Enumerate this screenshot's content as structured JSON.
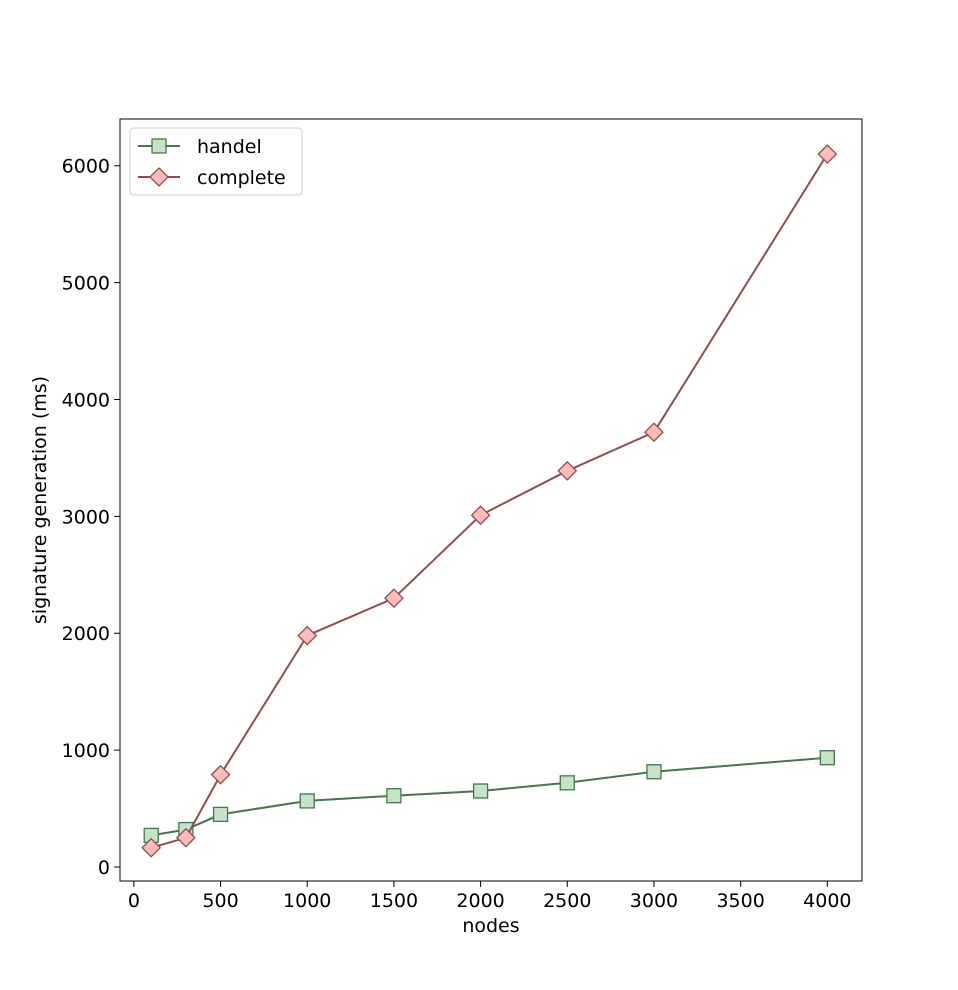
{
  "chart_data": {
    "type": "line",
    "title": "",
    "xlabel": "nodes",
    "ylabel": "signature generation (ms)",
    "xlim": [
      -80,
      4200
    ],
    "ylim": [
      -120,
      6400
    ],
    "xticks": [
      0,
      500,
      1000,
      1500,
      2000,
      2500,
      3000,
      3500,
      4000
    ],
    "yticks": [
      0,
      1000,
      2000,
      3000,
      4000,
      5000,
      6000
    ],
    "grid": false,
    "legend_position": "upper-left",
    "series": [
      {
        "name": "handel",
        "marker": "square",
        "line_color": "#4a7350",
        "marker_fill": "#c5e3c5",
        "marker_edge": "#4a7350",
        "x": [
          100,
          300,
          500,
          1000,
          1500,
          2000,
          2500,
          3000,
          4000
        ],
        "y": [
          270,
          320,
          450,
          565,
          610,
          650,
          720,
          815,
          935
        ]
      },
      {
        "name": "complete",
        "marker": "diamond",
        "line_color": "#8b4f4f",
        "marker_fill": "#ffbaba",
        "marker_edge": "#8b4f4f",
        "x": [
          100,
          300,
          500,
          1000,
          1500,
          2000,
          2500,
          3000,
          4000
        ],
        "y": [
          165,
          250,
          790,
          1980,
          2300,
          3010,
          3390,
          3720,
          6100
        ]
      }
    ]
  }
}
